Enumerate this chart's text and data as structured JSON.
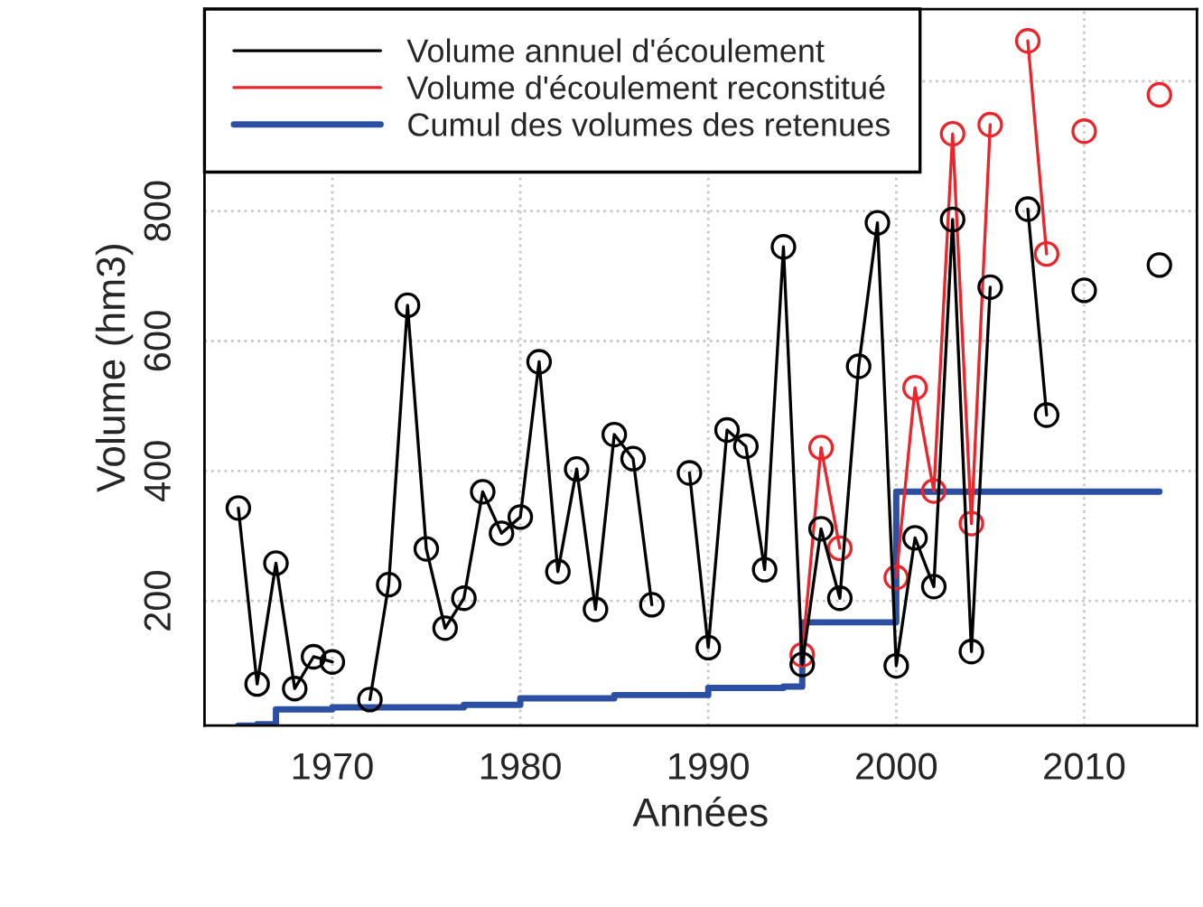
{
  "chart_data": {
    "type": "line",
    "xlabel": "Années",
    "ylabel": "Volume (hm3)",
    "xlim": [
      1963.2,
      2016
    ],
    "ylim": [
      8,
      1111
    ],
    "xticks": [
      1970,
      1980,
      1990,
      2000,
      2010
    ],
    "yticks": [
      200,
      400,
      600,
      800,
      {
        "value": 1000,
        "label": null
      }
    ],
    "grid": true,
    "legend": "top left",
    "line_style": "solid",
    "series": [
      {
        "name": "Cumul des volumes des retenues",
        "color": "#2b4fa3",
        "type": "step",
        "marker": "none",
        "x": [
          1965,
          1966,
          1967,
          1970,
          1977,
          1980,
          1985,
          1990,
          1994,
          1995,
          1999,
          2000,
          2014
        ],
        "values": [
          8,
          10,
          33,
          36,
          40,
          50,
          55,
          66,
          68,
          167,
          167,
          368,
          368
        ]
      },
      {
        "name": "Volume d'écoulement reconstitué",
        "color": "#e8262c",
        "marker": "circle",
        "x": [
          1995,
          1996,
          1997,
          1998,
          1999,
          2000,
          2001,
          2002,
          2003,
          2004,
          2005,
          2006,
          2007,
          2008,
          2009,
          2010,
          2011,
          2012,
          2013,
          2014
        ],
        "values": [
          117,
          436,
          281,
          null,
          null,
          236,
          528,
          369,
          919,
          319,
          933,
          null,
          1062,
          734,
          null,
          923,
          null,
          null,
          null,
          979
        ]
      },
      {
        "name": "Volume annuel d'écoulement",
        "color": "#000000",
        "marker": "circle",
        "x": [
          1965,
          1966,
          1967,
          1968,
          1969,
          1970,
          1971,
          1972,
          1973,
          1974,
          1975,
          1976,
          1977,
          1978,
          1979,
          1980,
          1981,
          1982,
          1983,
          1984,
          1985,
          1986,
          1987,
          1988,
          1989,
          1990,
          1991,
          1992,
          1993,
          1994,
          1995,
          1996,
          1997,
          1998,
          1999,
          2000,
          2001,
          2002,
          2003,
          2004,
          2005,
          2006,
          2007,
          2008,
          2009,
          2010,
          2011,
          2012,
          2013,
          2014
        ],
        "values": [
          343,
          72,
          258,
          65,
          114,
          106,
          null,
          48,
          225,
          655,
          280,
          158,
          204,
          368,
          304,
          329,
          568,
          245,
          403,
          187,
          456,
          419,
          194,
          null,
          397,
          128,
          463,
          438,
          248,
          745,
          102,
          311,
          204,
          561,
          782,
          100,
          297,
          222,
          787,
          122,
          683,
          null,
          803,
          486,
          null,
          678,
          null,
          null,
          null,
          717
        ]
      }
    ]
  }
}
